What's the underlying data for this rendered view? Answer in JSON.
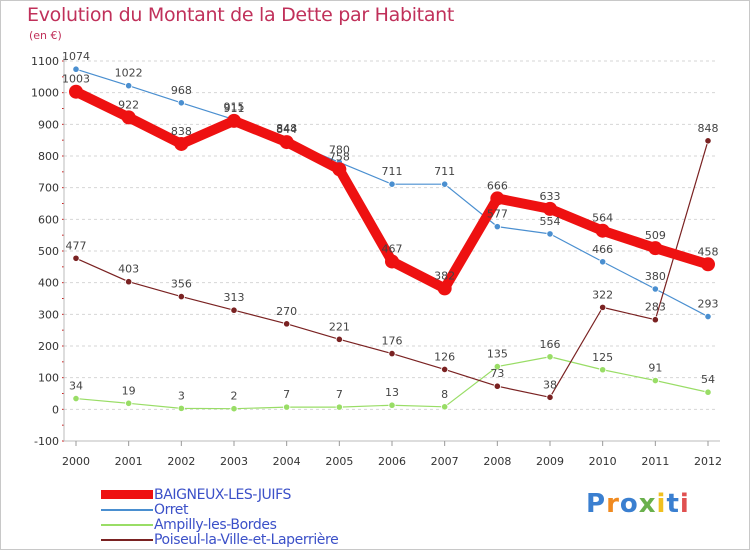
{
  "header": {
    "title": "Evolution du Montant de la Dette par Habitant",
    "unit": "(en €)"
  },
  "logo": {
    "text": "Proxiti",
    "colors": [
      "#3a7fd0",
      "#f08a20",
      "#3a7fd0",
      "#6ab04c",
      "#f0c020",
      "#3a7fd0",
      "#e05050"
    ]
  },
  "chart_data": {
    "type": "line",
    "title": "Evolution du Montant de la Dette par Habitant",
    "ylabel": "(en €)",
    "xlabel": "",
    "x": [
      "2000",
      "2001",
      "2002",
      "2003",
      "2004",
      "2005",
      "2006",
      "2007",
      "2008",
      "2009",
      "2010",
      "2011",
      "2012"
    ],
    "ylim": [
      -100,
      1100
    ],
    "yticks": [
      -100,
      0,
      100,
      200,
      300,
      400,
      500,
      600,
      700,
      800,
      900,
      1000,
      1100
    ],
    "grid": "horizontal dashed",
    "legend_position": "bottom-left",
    "series": [
      {
        "name": "BAIGNEUX-LES-JUIFS",
        "color": "#ee1111",
        "values": [
          1003,
          922,
          838,
          911,
          844,
          758,
          467,
          382,
          666,
          633,
          564,
          509,
          458
        ]
      },
      {
        "name": "Orret",
        "color": "#4a8fd0",
        "values": [
          1074,
          1022,
          968,
          915,
          848,
          780,
          711,
          711,
          577,
          554,
          466,
          380,
          293
        ]
      },
      {
        "name": "Ampilly-les-Bordes",
        "color": "#99dd66",
        "values": [
          34,
          19,
          3,
          2,
          7,
          7,
          13,
          8,
          135,
          166,
          125,
          91,
          54
        ]
      },
      {
        "name": "Poiseul-la-Ville-et-Laperrière",
        "color": "#7a2222",
        "values": [
          477,
          403,
          356,
          313,
          270,
          221,
          176,
          126,
          73,
          38,
          322,
          283,
          848
        ]
      }
    ]
  }
}
